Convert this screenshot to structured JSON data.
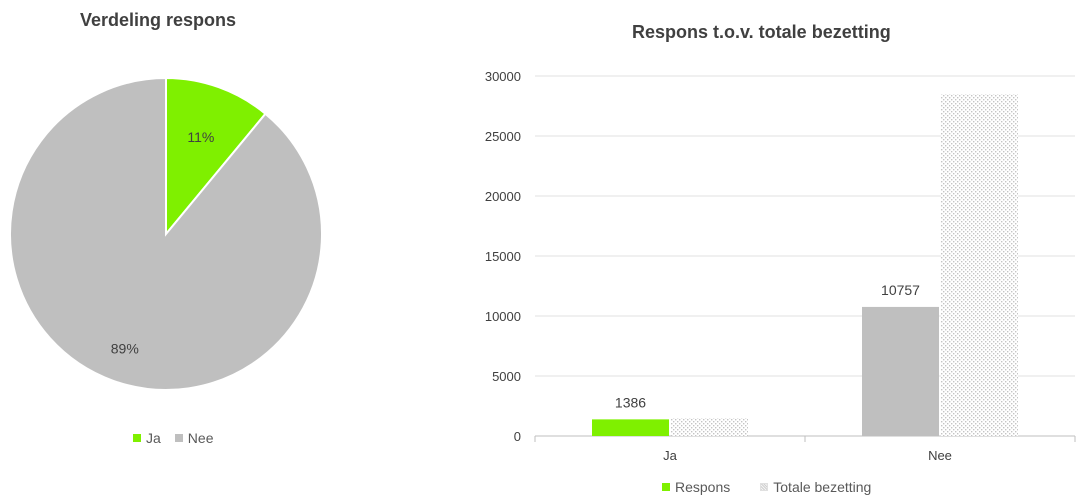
{
  "pie_title": "Verdeling respons",
  "bar_title": "Respons t.o.v. totale bezetting",
  "colors": {
    "green": "#7FF000",
    "gray": "#BFBFBF",
    "pattern_fg": "#C8C8C8",
    "axis": "#BFBFBF",
    "grid": "#E0E0E0"
  },
  "chart_data": [
    {
      "type": "pie",
      "title": "Verdeling respons",
      "categories": [
        "Ja",
        "Nee"
      ],
      "values": [
        11,
        89
      ],
      "labels": [
        "11%",
        "89%"
      ],
      "legend": "bottom"
    },
    {
      "type": "bar",
      "title": "Respons t.o.v. totale bezetting",
      "categories": [
        "Ja",
        "Nee"
      ],
      "series": [
        {
          "name": "Respons",
          "values": [
            1386,
            10757
          ],
          "data_labels": [
            "1386",
            "10757"
          ]
        },
        {
          "name": "Totale bezetting",
          "values": [
            1500,
            28500
          ]
        }
      ],
      "ylim": [
        0,
        30000
      ],
      "yticks": [
        "0",
        "5000",
        "10000",
        "15000",
        "20000",
        "25000",
        "30000"
      ],
      "grid": true,
      "legend": "bottom"
    }
  ]
}
